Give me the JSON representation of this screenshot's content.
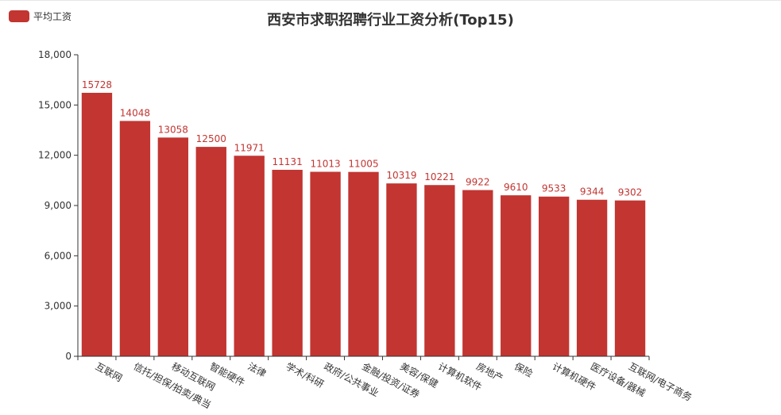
{
  "title": "西安市求职招聘行业工资分析(Top15)",
  "legend": {
    "label": "平均工资",
    "color": "#c23531"
  },
  "chart_data": {
    "type": "bar",
    "title": "西安市求职招聘行业工资分析(Top15)",
    "categories": [
      "互联网",
      "信托/担保/拍卖/典当",
      "移动互联网",
      "智能硬件",
      "法律",
      "学术/科研",
      "政府/公共事业",
      "金融/投资/证券",
      "美容/保健",
      "计算机软件",
      "房地产",
      "保险",
      "计算机硬件",
      "医疗设备/器械",
      "互联网/电子商务"
    ],
    "series": [
      {
        "name": "平均工资",
        "values": [
          15728,
          14048,
          13058,
          12500,
          11971,
          11131,
          11013,
          11005,
          10319,
          10221,
          9922,
          9610,
          9533,
          9344,
          9302
        ],
        "color": "#c23531"
      }
    ],
    "ylim": [
      0,
      18000
    ],
    "yticks": [
      "0",
      "3,000",
      "6,000",
      "9,000",
      "12,000",
      "15,000",
      "18,000"
    ],
    "grid": false,
    "legend_position": "top-left"
  }
}
